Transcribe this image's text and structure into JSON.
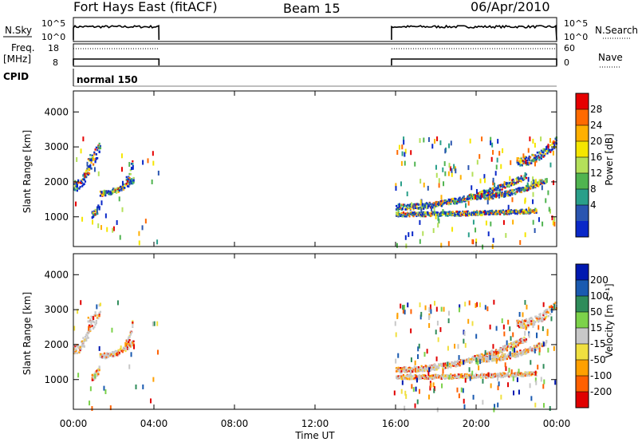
{
  "header": {
    "station": "Fort Hays East (fitACF)",
    "beam": "Beam 15",
    "date": "06/Apr/2010"
  },
  "side_labels": {
    "nsky": "N.Sky",
    "nsearch": "N.Search",
    "freq_line1": "Freq.",
    "freq_line2": "[MHz]",
    "nave": "Nave",
    "cpid": "CPID",
    "cpid_value": "normal 150"
  },
  "small_axes": {
    "noise_left": [
      "10^5",
      "10^0"
    ],
    "noise_right": [
      "10^5",
      "10^0"
    ],
    "freq_left": [
      "18",
      "8"
    ],
    "nave_right": [
      "60",
      "0"
    ]
  },
  "chart_data": [
    {
      "type": "heatmap",
      "name": "power-panel",
      "ylabel": "Slant Range [km]",
      "xlabel": "Time UT",
      "y_ticks": [
        1000,
        2000,
        3000,
        4000
      ],
      "ylim": [
        150,
        4600
      ],
      "x_ticks": [
        "00:00",
        "04:00",
        "08:00",
        "12:00",
        "16:00",
        "20:00",
        "00:00"
      ],
      "xlim_hours": [
        0,
        24
      ],
      "colorbar": {
        "label": "Power [dB]",
        "ticks": [
          "28",
          "24",
          "20",
          "16",
          "12",
          "8",
          "4"
        ],
        "colors": [
          "#e60000",
          "#ff6a00",
          "#ffb000",
          "#f5e600",
          "#b4e05a",
          "#50b450",
          "#2a9f8a",
          "#2a55b0",
          "#0a28c8"
        ]
      },
      "data_windows_hours": [
        [
          0.0,
          4.25
        ],
        [
          15.8,
          24.0
        ]
      ]
    },
    {
      "type": "heatmap",
      "name": "velocity-panel",
      "ylabel": "Slant Range [km]",
      "xlabel": "Time UT",
      "y_ticks": [
        1000,
        2000,
        3000,
        4000
      ],
      "ylim": [
        150,
        4600
      ],
      "x_ticks": [
        "00:00",
        "04:00",
        "08:00",
        "12:00",
        "16:00",
        "20:00",
        "00:00"
      ],
      "colorbar": {
        "label": "Velocity [m s⁻¹]",
        "ticks": [
          "200",
          "100",
          "50",
          "15",
          "-15",
          "-50",
          "-100",
          "-200"
        ],
        "colors": [
          "#0018b0",
          "#1a5ab0",
          "#2f8c5a",
          "#7cd24a",
          "#c8c8c8",
          "#f0e040",
          "#ffa000",
          "#ff6000",
          "#e00000"
        ]
      },
      "data_windows_hours": [
        [
          0.0,
          4.25
        ],
        [
          15.8,
          24.0
        ]
      ]
    }
  ],
  "axis_title": "Time UT"
}
